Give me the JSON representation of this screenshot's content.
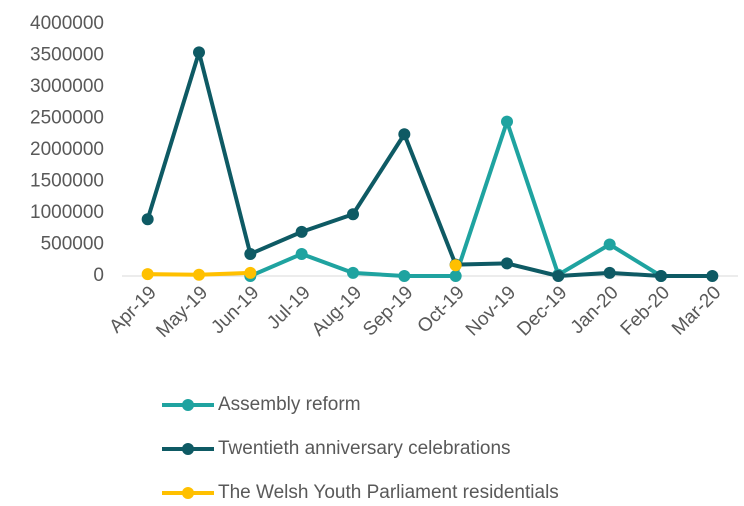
{
  "chart_data": {
    "type": "line",
    "categories": [
      "Apr-19",
      "May-19",
      "Jun-19",
      "Jul-19",
      "Aug-19",
      "Sep-19",
      "Oct-19",
      "Nov-19",
      "Dec-19",
      "Jan-20",
      "Feb-20",
      "Mar-20"
    ],
    "series": [
      {
        "name": "Assembly reform",
        "color": "#1fa3a0",
        "values": [
          null,
          null,
          0,
          350000,
          50000,
          0,
          0,
          2450000,
          20000,
          500000,
          0,
          null
        ]
      },
      {
        "name": "Twentieth anniversary celebrations",
        "color": "#0e5a64",
        "values": [
          900000,
          3550000,
          350000,
          700000,
          980000,
          2250000,
          180000,
          200000,
          0,
          50000,
          0,
          0
        ]
      },
      {
        "name": "The Welsh Youth Parliament residentials",
        "color": "#ffc000",
        "values": [
          30000,
          20000,
          50000,
          null,
          null,
          null,
          170000,
          null,
          null,
          null,
          null,
          null
        ]
      }
    ],
    "ylim": [
      0,
      4000000
    ],
    "yticks": [
      0,
      500000,
      1000000,
      1500000,
      2000000,
      2500000,
      3000000,
      3500000,
      4000000
    ],
    "grid": false,
    "legend": "bottom"
  }
}
